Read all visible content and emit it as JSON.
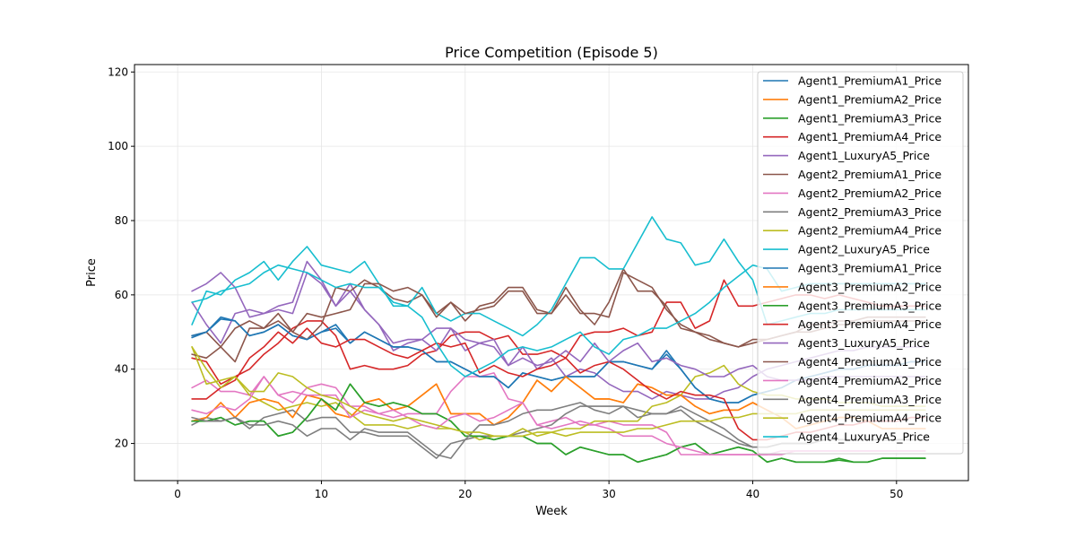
{
  "chart_data": {
    "type": "line",
    "title": "Price Competition (Episode 5)",
    "xlabel": "Week",
    "ylabel": "Price",
    "xlim": [
      -3,
      55
    ],
    "ylim": [
      10,
      122
    ],
    "xticks": [
      0,
      10,
      20,
      30,
      40,
      50
    ],
    "yticks": [
      20,
      40,
      60,
      80,
      100,
      120
    ],
    "xtick_labels": [
      "0",
      "10",
      "20",
      "30",
      "40",
      "50"
    ],
    "ytick_labels": [
      "20",
      "40",
      "60",
      "80",
      "100",
      "120"
    ],
    "grid": true,
    "legend_position": "top-right",
    "x": [
      1,
      2,
      3,
      4,
      5,
      6,
      7,
      8,
      9,
      10,
      11,
      12,
      13,
      14,
      15,
      16,
      17,
      18,
      19,
      20,
      21,
      22,
      23,
      24,
      25,
      26,
      27,
      28,
      29,
      30,
      31,
      32,
      33,
      34,
      35,
      36,
      37,
      38,
      39,
      40,
      41,
      42,
      43,
      44,
      45,
      46,
      47,
      48,
      49,
      50,
      51,
      52
    ],
    "series": [
      {
        "name": "Agent1_PremiumA1_Price",
        "color": "#1f77b4",
        "values": [
          48.5,
          50,
          53.5,
          53,
          49,
          50,
          52,
          49,
          48,
          50,
          51,
          47,
          50,
          48,
          46,
          46,
          45,
          42,
          42,
          40,
          38,
          38,
          35,
          39,
          38,
          37,
          38,
          38,
          38,
          42,
          42,
          41,
          40,
          44,
          40,
          35,
          32,
          31,
          31,
          33,
          34,
          35,
          37,
          38,
          39,
          40,
          40,
          41,
          41,
          41,
          42,
          42
        ]
      },
      {
        "name": "Agent1_PremiumA2_Price",
        "color": "#ff7f0e",
        "values": [
          26,
          27,
          31,
          27,
          31,
          32,
          31,
          27,
          33,
          32,
          28,
          27,
          31,
          32,
          29,
          30,
          33,
          36,
          28,
          28,
          28,
          25,
          27,
          31,
          37,
          34,
          38,
          35,
          32,
          32,
          31,
          36,
          35,
          33,
          33,
          30,
          28,
          29,
          29,
          31,
          29,
          27,
          24,
          25,
          26,
          27,
          27,
          26,
          24,
          24,
          24,
          24
        ]
      },
      {
        "name": "Agent1_PremiumA3_Price",
        "color": "#2ca02c",
        "values": [
          26,
          26,
          27,
          25,
          26,
          26,
          22,
          23,
          27,
          32,
          29,
          36,
          31,
          30,
          31,
          30,
          28,
          28,
          26,
          22,
          22,
          21,
          22,
          22,
          20,
          20,
          17,
          19,
          18,
          17,
          17,
          15,
          16,
          17,
          19,
          20,
          17,
          18,
          19,
          18,
          15,
          16,
          15,
          15,
          15,
          15.5,
          15,
          15,
          16,
          16,
          16,
          16
        ]
      },
      {
        "name": "Agent1_PremiumA4_Price",
        "color": "#d62728",
        "values": [
          43,
          42,
          36,
          38,
          40,
          44,
          47,
          51,
          53,
          53,
          49,
          40,
          41,
          40,
          40,
          41,
          44,
          45,
          49,
          50,
          50,
          48,
          49,
          44,
          44,
          45,
          43,
          49,
          50,
          50,
          51,
          49,
          50,
          58,
          58,
          51,
          53,
          64,
          57,
          57,
          58,
          59,
          60,
          60,
          59,
          60,
          59,
          58,
          57,
          57,
          57,
          57
        ]
      },
      {
        "name": "Agent1_LuxuryA5_Price",
        "color": "#9467bd",
        "values": [
          58,
          52,
          47,
          55,
          56,
          55,
          57,
          58,
          69,
          64,
          57,
          63,
          56,
          52,
          45,
          47,
          48,
          45,
          51,
          45,
          47,
          46,
          41,
          46,
          40,
          43,
          38,
          40,
          39,
          36,
          34,
          34,
          32,
          34,
          33,
          32,
          32,
          34,
          35,
          38,
          40,
          41,
          42,
          43,
          44,
          45,
          45,
          46,
          46,
          46,
          46,
          46
        ]
      },
      {
        "name": "Agent2_PremiumA1_Price",
        "color": "#8c564b",
        "values": [
          49,
          50,
          46,
          42,
          51,
          51,
          55,
          50,
          48,
          52,
          62,
          61,
          64,
          62,
          59,
          58,
          60,
          55,
          58,
          53,
          57,
          58,
          62,
          62,
          56,
          55,
          62,
          56,
          52,
          58,
          67,
          61,
          61,
          57,
          51,
          50,
          49,
          47,
          46,
          48,
          48,
          49,
          50,
          52,
          52,
          53,
          53,
          54,
          54,
          54,
          54,
          54
        ]
      },
      {
        "name": "Agent2_PremiumA2_Price",
        "color": "#e377c2",
        "values": [
          35,
          37,
          34,
          34,
          33,
          38,
          33,
          31,
          35,
          36,
          35,
          30,
          30,
          28,
          27,
          28,
          28,
          28,
          34,
          38,
          38,
          39,
          32,
          31,
          25,
          26,
          27,
          25,
          25,
          26,
          25,
          25,
          25,
          23,
          17,
          17,
          17,
          17,
          17,
          17,
          17,
          17,
          18,
          18,
          18,
          18,
          18,
          18,
          18,
          18,
          18,
          18
        ]
      },
      {
        "name": "Agent2_PremiumA3_Price",
        "color": "#7f7f7f",
        "values": [
          25,
          27,
          26,
          27,
          24,
          27,
          28,
          29,
          26,
          27,
          27,
          23,
          23,
          22,
          22,
          22,
          19,
          16,
          20,
          21,
          22,
          22,
          22,
          23,
          24,
          25,
          28,
          30,
          30,
          30,
          30,
          29,
          28,
          28,
          29,
          26,
          24,
          22,
          20,
          19,
          19,
          20,
          20,
          20,
          21,
          21,
          21,
          21,
          21,
          21,
          21,
          21
        ]
      },
      {
        "name": "Agent2_PremiumA4_Price",
        "color": "#bcbd22",
        "values": [
          46,
          36,
          37,
          38,
          33,
          31,
          29,
          30,
          31,
          30,
          31,
          28,
          25,
          25,
          25,
          24,
          25,
          24,
          24,
          23,
          21,
          22,
          22,
          24,
          22,
          23,
          24,
          24,
          26,
          26,
          26,
          26,
          30,
          31,
          33,
          38,
          39,
          41,
          36,
          34,
          33,
          33,
          32,
          32,
          32,
          31,
          31,
          31,
          30,
          30,
          30,
          30
        ]
      },
      {
        "name": "Agent2_LuxuryA5_Price",
        "color": "#17becf",
        "values": [
          52,
          61,
          60,
          64,
          66,
          69,
          64,
          69,
          73,
          68,
          67,
          66,
          69,
          63,
          57,
          57,
          62,
          55,
          53,
          55,
          55,
          53,
          51,
          49,
          52,
          56,
          63,
          70,
          70,
          67,
          67,
          74,
          81,
          75,
          74,
          68,
          69,
          75,
          69,
          64,
          52,
          53,
          54,
          55,
          55,
          56,
          56,
          56,
          56,
          56,
          56,
          56
        ]
      },
      {
        "name": "Agent3_PremiumA1_Price",
        "color": "#1f77b4",
        "values": [
          49,
          50,
          54,
          53,
          49,
          50,
          52,
          49,
          48,
          50,
          52,
          47,
          50,
          48,
          46,
          46,
          45,
          42,
          42,
          40,
          38,
          38,
          35,
          39,
          38,
          37,
          38,
          38,
          38,
          42,
          42,
          41,
          40,
          45,
          40,
          35,
          32,
          31,
          31,
          33,
          34,
          35,
          37,
          38,
          39,
          40,
          40,
          41,
          41,
          41,
          42,
          42
        ]
      },
      {
        "name": "Agent3_PremiumA2_Price",
        "color": "#ff7f0e",
        "values": [
          26,
          27,
          31,
          27,
          31,
          32,
          31,
          27,
          33,
          32,
          28,
          27,
          31,
          32,
          29,
          30,
          33,
          36,
          28,
          28,
          28,
          25,
          27,
          31,
          37,
          34,
          38,
          35,
          32,
          32,
          31,
          36,
          35,
          33,
          33,
          30,
          28,
          29,
          29,
          31,
          29,
          27,
          24,
          25,
          26,
          27,
          27,
          26,
          24,
          24,
          24,
          24
        ]
      },
      {
        "name": "Agent3_PremiumA3_Price",
        "color": "#2ca02c",
        "values": [
          26,
          26,
          27,
          25,
          26,
          26,
          22,
          23,
          27,
          32,
          29,
          36,
          31,
          30,
          31,
          30,
          28,
          28,
          26,
          22,
          22,
          21,
          22,
          22,
          20,
          20,
          17,
          19,
          18,
          17,
          17,
          15,
          16,
          17,
          19,
          20,
          17,
          18,
          19,
          18,
          15,
          16,
          15,
          15,
          15,
          16,
          15,
          15,
          16,
          16,
          16,
          16
        ]
      },
      {
        "name": "Agent3_PremiumA4_Price",
        "color": "#d62728",
        "values": [
          32,
          32,
          35,
          37,
          43,
          46,
          50,
          47,
          51,
          47,
          46,
          48,
          48,
          46,
          44,
          43,
          45,
          47,
          46,
          47,
          39,
          41,
          39,
          38,
          40,
          41,
          43,
          39,
          41,
          42,
          40,
          37,
          34,
          32,
          34,
          33,
          33,
          32,
          24,
          21,
          21,
          22,
          23,
          23,
          24,
          25,
          25,
          26,
          26,
          26,
          27,
          27
        ]
      },
      {
        "name": "Agent3_LuxuryA5_Price",
        "color": "#9467bd",
        "values": [
          61,
          63,
          66,
          62,
          54,
          55,
          56,
          55,
          66,
          63,
          57,
          61,
          56,
          52,
          47,
          48,
          48,
          51,
          51,
          48,
          47,
          48,
          41,
          43,
          41,
          42,
          45,
          42,
          47,
          42,
          45,
          47,
          42,
          43,
          41,
          40,
          38,
          38,
          40,
          41,
          38,
          37,
          37,
          37,
          38,
          38,
          38,
          38,
          38,
          38,
          38,
          38
        ]
      },
      {
        "name": "Agent4_PremiumA1_Price",
        "color": "#8c564b",
        "values": [
          44,
          43,
          46,
          51,
          53,
          51,
          53,
          50,
          55,
          54,
          55,
          56,
          63,
          63,
          61,
          62,
          60,
          54,
          58,
          55,
          56,
          57,
          61,
          61,
          55,
          55,
          60,
          55,
          55,
          54,
          66,
          64,
          62,
          56,
          52,
          50,
          48,
          47,
          46,
          47,
          48,
          49,
          50,
          50,
          51,
          52,
          52,
          53,
          53,
          53,
          53,
          53
        ]
      },
      {
        "name": "Agent4_PremiumA2_Price",
        "color": "#e377c2",
        "values": [
          29,
          28,
          30,
          29,
          32,
          38,
          33,
          34,
          33,
          33,
          33,
          27,
          29,
          28,
          29,
          27,
          25,
          24,
          27,
          28,
          26,
          27,
          29,
          31,
          25,
          24,
          25,
          26,
          25,
          24,
          22,
          22,
          22,
          20,
          19,
          18,
          17,
          17,
          17,
          17,
          17,
          18,
          18,
          18,
          18,
          18,
          18,
          18,
          18,
          18,
          18,
          18
        ]
      },
      {
        "name": "Agent4_PremiumA3_Price",
        "color": "#7f7f7f",
        "values": [
          27,
          26,
          26,
          27,
          25,
          25,
          26,
          25,
          22,
          24,
          24,
          21,
          24,
          23,
          23,
          23,
          20,
          17,
          16,
          21,
          25,
          25,
          26,
          28,
          29,
          29,
          30,
          31,
          29,
          28,
          30,
          27,
          28,
          28,
          30,
          28,
          26,
          24,
          21,
          19,
          19,
          20,
          20,
          20,
          21,
          21,
          21,
          21,
          21,
          21,
          21,
          21
        ]
      },
      {
        "name": "Agent4_PremiumA4_Price",
        "color": "#bcbd22",
        "values": [
          46,
          40,
          35,
          38,
          34,
          34,
          39,
          38,
          35,
          33,
          32,
          30,
          28,
          27,
          26,
          27,
          26,
          25,
          24,
          23,
          23,
          22,
          22,
          22,
          23,
          23,
          22,
          23,
          23,
          23,
          23,
          24,
          24,
          25,
          26,
          26,
          26,
          27,
          27,
          28,
          28,
          28,
          28,
          29,
          29,
          29,
          29,
          29,
          29,
          29,
          29,
          29
        ]
      },
      {
        "name": "Agent4_LuxuryA5_Price",
        "color": "#17becf",
        "values": [
          58,
          59,
          61,
          62,
          63,
          66,
          68,
          67,
          66,
          64,
          62,
          63,
          62,
          62,
          58,
          57,
          54,
          47,
          41,
          38,
          40,
          42,
          45,
          46,
          45,
          46,
          48,
          50,
          46,
          44,
          48,
          49,
          51,
          51,
          53,
          55,
          58,
          62,
          65,
          68,
          67,
          61,
          62,
          63,
          63,
          63,
          63,
          63,
          63,
          63,
          63,
          63
        ]
      }
    ]
  }
}
